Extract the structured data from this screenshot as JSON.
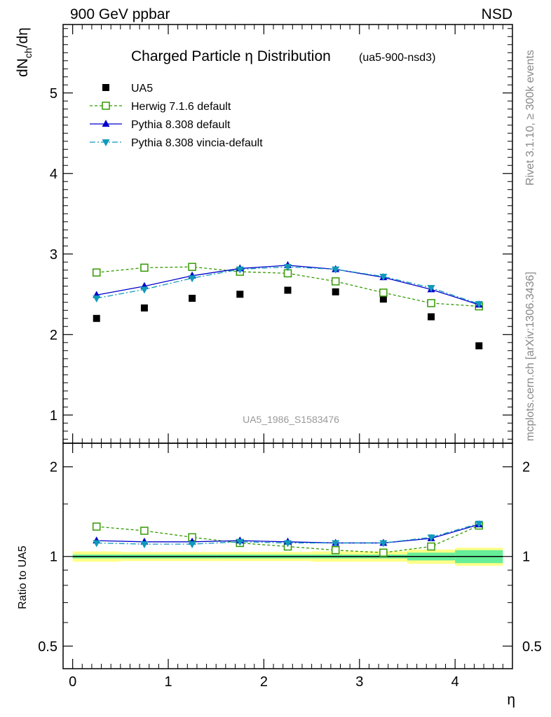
{
  "header": {
    "left": "900 GeV ppbar",
    "right": "NSD"
  },
  "side_text": {
    "rivet": "Rivet 3.1.10, ≥ 300k events",
    "mcplots": "mcplots.cern.ch [arXiv:1306.3436]"
  },
  "chart_data": [
    {
      "type": "scatter",
      "panel": "main",
      "title": "Charged Particle η Distribution",
      "title_suffix": "(ua5-900-nsd3)",
      "ylabel": "dN_ch/dη",
      "ylabel_main": "dN",
      "ylabel_sub": "ch",
      "ylabel_tail": "/dη",
      "watermark": "UA5_1986_S1583476",
      "xlim": [
        -0.1,
        4.6
      ],
      "ylim": [
        0.65,
        5.85
      ],
      "yticks": [
        1,
        2,
        3,
        4,
        5
      ],
      "yticklabels": [
        "1",
        "2",
        "3",
        "4",
        "5"
      ],
      "x": [
        0.25,
        0.75,
        1.25,
        1.75,
        2.25,
        2.75,
        3.25,
        3.75,
        4.25
      ],
      "legend_position": "top-left",
      "series": [
        {
          "name": "UA5",
          "values": [
            2.2,
            2.33,
            2.45,
            2.5,
            2.55,
            2.53,
            2.44,
            2.22,
            1.86
          ],
          "color": "#000000",
          "marker": "square-filled",
          "line": "none"
        },
        {
          "name": "Herwig 7.1.6 default",
          "values": [
            2.77,
            2.83,
            2.84,
            2.78,
            2.76,
            2.66,
            2.52,
            2.39,
            2.35
          ],
          "color": "#339900",
          "marker": "square-open",
          "line": "dashed"
        },
        {
          "name": "Pythia 8.308 default",
          "values": [
            2.49,
            2.6,
            2.73,
            2.82,
            2.86,
            2.81,
            2.71,
            2.56,
            2.37
          ],
          "color": "#0000cc",
          "marker": "triangle-up",
          "line": "solid"
        },
        {
          "name": "Pythia 8.308 vincia-default",
          "values": [
            2.45,
            2.56,
            2.7,
            2.81,
            2.84,
            2.81,
            2.72,
            2.58,
            2.38
          ],
          "color": "#1199bb",
          "marker": "triangle-down",
          "line": "dashdot"
        }
      ]
    },
    {
      "type": "scatter",
      "panel": "ratio",
      "ylabel": "Ratio to UA5",
      "xlabel": "η",
      "log_y": true,
      "ylim": [
        0.42,
        2.4
      ],
      "yticks": [
        0.5,
        1,
        2
      ],
      "yticklabels": [
        "0.5",
        "1",
        "2"
      ],
      "xlim": [
        -0.1,
        4.6
      ],
      "xticks": [
        0,
        1,
        2,
        3,
        4
      ],
      "xticklabels": [
        "0",
        "1",
        "2",
        "3",
        "4"
      ],
      "x": [
        0.25,
        0.75,
        1.25,
        1.75,
        2.25,
        2.75,
        3.25,
        3.75,
        4.25
      ],
      "bands": {
        "stat_color": "#66ee99",
        "total_color": "#ffff88",
        "bin_edges": [
          0.0,
          0.5,
          1.0,
          1.5,
          2.0,
          2.5,
          3.0,
          3.5,
          4.0,
          4.5
        ],
        "stat_lo": [
          0.985,
          0.985,
          0.985,
          0.985,
          0.985,
          0.985,
          0.985,
          0.97,
          0.95
        ],
        "stat_hi": [
          1.015,
          1.015,
          1.015,
          1.015,
          1.015,
          1.015,
          1.015,
          1.03,
          1.05
        ],
        "total_lo": [
          0.96,
          0.965,
          0.965,
          0.965,
          0.965,
          0.96,
          0.96,
          0.945,
          0.93
        ],
        "total_hi": [
          1.04,
          1.035,
          1.035,
          1.035,
          1.035,
          1.04,
          1.04,
          1.055,
          1.07
        ]
      },
      "series": [
        {
          "name": "Herwig 7.1.6 default",
          "values": [
            1.26,
            1.22,
            1.16,
            1.11,
            1.08,
            1.05,
            1.03,
            1.08,
            1.27
          ],
          "color": "#339900",
          "marker": "square-open",
          "line": "dashed"
        },
        {
          "name": "Pythia 8.308 default",
          "values": [
            1.13,
            1.12,
            1.12,
            1.13,
            1.12,
            1.11,
            1.11,
            1.15,
            1.28
          ],
          "color": "#0000cc",
          "marker": "triangle-up",
          "line": "solid"
        },
        {
          "name": "Pythia 8.308 vincia-default",
          "values": [
            1.11,
            1.1,
            1.1,
            1.12,
            1.11,
            1.11,
            1.11,
            1.16,
            1.29
          ],
          "color": "#1199bb",
          "marker": "triangle-down",
          "line": "dashdot"
        }
      ]
    }
  ]
}
